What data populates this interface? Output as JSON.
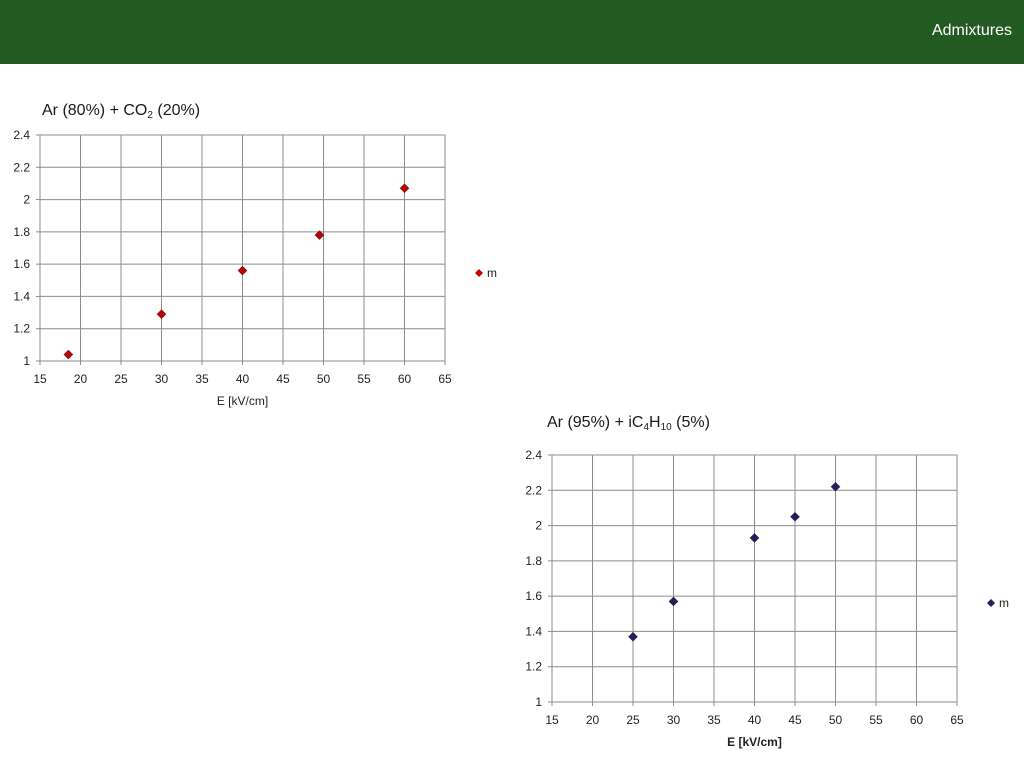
{
  "header": {
    "title": "Admixtures"
  },
  "chart_data": [
    {
      "type": "scatter",
      "title": {
        "pre": "Ar (80%) + CO",
        "sub": "2",
        "post": " (20%)"
      },
      "xlabel": "E [kV/cm]",
      "ylabel": "",
      "xlim": [
        15,
        65
      ],
      "ylim": [
        1,
        2.4
      ],
      "x_ticks": [
        "15",
        "20",
        "25",
        "30",
        "35",
        "40",
        "45",
        "50",
        "55",
        "60",
        "65"
      ],
      "y_ticks": [
        "1",
        "1.2",
        "1.4",
        "1.6",
        "1.8",
        "2",
        "2.2",
        "2.4"
      ],
      "grid": true,
      "legend_position": "right",
      "series": [
        {
          "name": "m",
          "color": "#c00000",
          "x": [
            18.5,
            30,
            40,
            49.5,
            60
          ],
          "y": [
            1.04,
            1.29,
            1.56,
            1.78,
            2.07
          ]
        }
      ]
    },
    {
      "type": "scatter",
      "title": {
        "pre": "Ar (95%) + iC",
        "sub": "4",
        "mid": "H",
        "sub2": "10",
        "post": " (5%)"
      },
      "xlabel": "E [kV/cm]",
      "ylabel": "",
      "xlim": [
        15,
        65
      ],
      "ylim": [
        1,
        2.4
      ],
      "x_ticks": [
        "15",
        "20",
        "25",
        "30",
        "35",
        "40",
        "45",
        "50",
        "55",
        "60",
        "65"
      ],
      "y_ticks": [
        "1",
        "1.2",
        "1.4",
        "1.6",
        "1.8",
        "2",
        "2.2",
        "2.4"
      ],
      "grid": true,
      "legend_position": "right",
      "series": [
        {
          "name": "m",
          "color": "#2a1a5e",
          "x": [
            25,
            30,
            40,
            45,
            50
          ],
          "y": [
            1.37,
            1.57,
            1.93,
            2.05,
            2.22
          ]
        }
      ]
    }
  ]
}
